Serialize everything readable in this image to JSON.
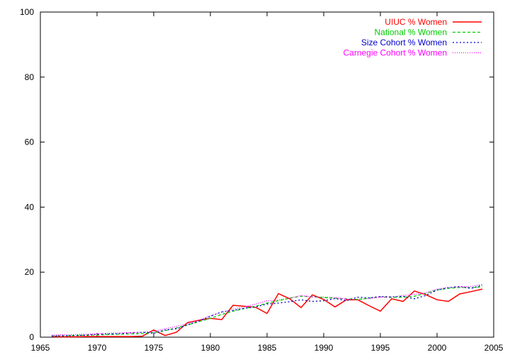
{
  "chart_data": {
    "type": "line",
    "title": "",
    "xlabel": "",
    "ylabel": "",
    "xlim": [
      1965,
      2005
    ],
    "ylim": [
      0,
      100
    ],
    "xticks": [
      1965,
      1970,
      1975,
      1980,
      1985,
      1990,
      1995,
      2000,
      2005
    ],
    "yticks": [
      0,
      20,
      40,
      60,
      80,
      100
    ],
    "legend_position": "top-right",
    "x": [
      1966,
      1967,
      1968,
      1969,
      1970,
      1971,
      1972,
      1973,
      1974,
      1975,
      1976,
      1977,
      1978,
      1979,
      1980,
      1981,
      1982,
      1983,
      1984,
      1985,
      1986,
      1987,
      1988,
      1989,
      1990,
      1991,
      1992,
      1993,
      1994,
      1995,
      1996,
      1997,
      1998,
      1999,
      2000,
      2001,
      2002,
      2003,
      2004
    ],
    "series": [
      {
        "name": "UIUC % Women",
        "color": "#ff0000",
        "dash": "solid",
        "values": [
          0.2,
          0.1,
          0.1,
          0.2,
          0.2,
          0.2,
          0.2,
          0.2,
          0.3,
          2.2,
          0.5,
          1.5,
          4.5,
          5.2,
          5.8,
          5.4,
          9.8,
          9.5,
          9.2,
          7.3,
          13.4,
          11.8,
          9.1,
          13.0,
          11.6,
          9.3,
          11.5,
          11.5,
          9.7,
          8.0,
          11.8,
          11.0,
          14.2,
          13.1,
          11.5,
          11.0,
          13.3,
          14.0,
          14.8
        ]
      },
      {
        "name": "National % Women",
        "color": "#00cc00",
        "dash": "dashed",
        "values": [
          0.4,
          0.4,
          0.5,
          0.6,
          0.7,
          0.8,
          0.9,
          1.0,
          1.1,
          1.4,
          2.0,
          2.8,
          3.8,
          4.8,
          5.8,
          7.0,
          8.0,
          8.8,
          9.5,
          10.5,
          11.2,
          12.0,
          12.6,
          12.4,
          12.2,
          12.0,
          11.8,
          11.6,
          12.0,
          12.4,
          12.2,
          12.3,
          12.6,
          13.5,
          14.5,
          15.0,
          15.3,
          15.2,
          15.5
        ]
      },
      {
        "name": "Size Cohort % Women",
        "color": "#0000cc",
        "dash": "dotted",
        "values": [
          0.3,
          0.4,
          0.5,
          0.6,
          0.9,
          1.0,
          1.1,
          1.3,
          1.5,
          1.2,
          2.2,
          2.6,
          3.8,
          5.0,
          6.4,
          7.8,
          8.2,
          8.9,
          9.3,
          10.2,
          10.5,
          10.9,
          11.5,
          11.0,
          11.2,
          11.9,
          11.2,
          12.3,
          12.1,
          12.5,
          12.4,
          12.6,
          11.8,
          12.8,
          14.5,
          15.2,
          15.6,
          15.0,
          16.0
        ]
      },
      {
        "name": "Carnegie Cohort % Women",
        "color": "#ff00ff",
        "dash": "finedotted",
        "values": [
          0.6,
          0.7,
          0.8,
          0.9,
          1.0,
          1.2,
          1.3,
          1.4,
          1.5,
          1.8,
          2.6,
          3.3,
          4.2,
          5.2,
          6.6,
          7.6,
          8.6,
          9.3,
          10.2,
          11.2,
          11.4,
          12.0,
          12.8,
          12.4,
          12.3,
          12.2,
          11.7,
          11.6,
          11.9,
          12.3,
          12.3,
          12.8,
          13.2,
          13.6,
          14.8,
          15.3,
          15.5,
          15.6,
          16.2
        ]
      }
    ]
  }
}
